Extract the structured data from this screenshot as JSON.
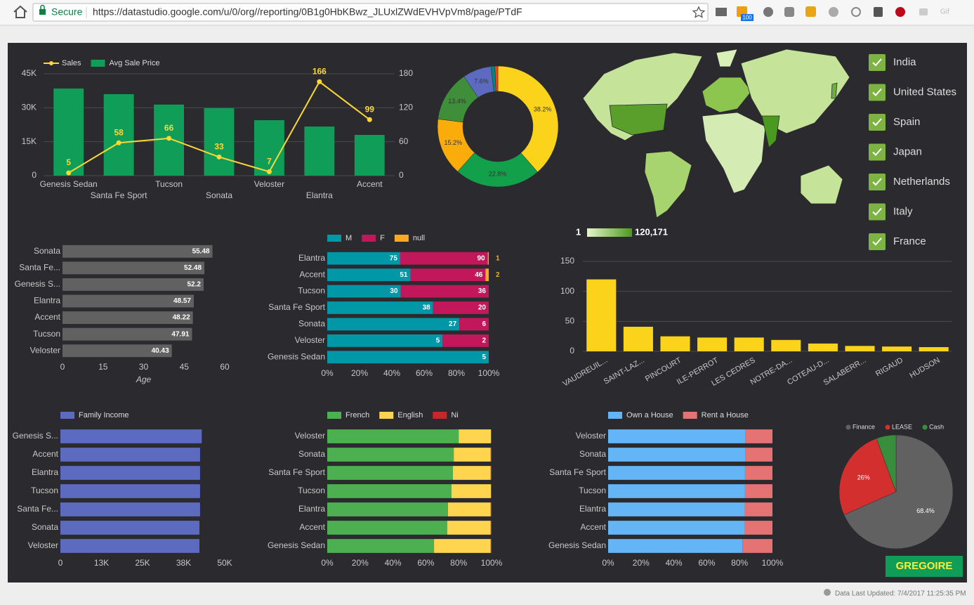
{
  "browser": {
    "secure": "Secure",
    "url": "https://datastudio.google.com/u/0/org//reporting/0B1g0HbKBwz_JLUxlZWdEVHVpVm8/page/PTdF",
    "badge": "100",
    "gif": "Gif"
  },
  "logo": "GREGOIRE",
  "footer": "Data Last Updated: 7/4/2017 11:25:35 PM",
  "chart_data": [
    {
      "type": "combo",
      "categories": [
        "Genesis Sedan",
        "Santa Fe Sport",
        "Tucson",
        "Sonata",
        "Veloster",
        "Elantra",
        "Accent"
      ],
      "series": [
        {
          "name": "Sales",
          "type": "line",
          "axis": "y2",
          "color": "#fdd835",
          "data_labels": true,
          "values": [
            5,
            58,
            66,
            33,
            7,
            166,
            99
          ]
        },
        {
          "name": "Avg Sale Price",
          "type": "bar",
          "color": "#0f9d58",
          "values": [
            38500,
            36000,
            31400,
            29800,
            24500,
            21700,
            18000
          ]
        }
      ],
      "ylim": [
        0,
        45000
      ],
      "yticks": [
        0,
        {
          "value": 15000,
          "label": "15K"
        },
        {
          "value": 30000,
          "label": "30K"
        },
        {
          "value": 45000,
          "label": "45K"
        }
      ],
      "y2lim": [
        0,
        180
      ],
      "y2ticks": [
        0,
        60,
        120,
        180
      ],
      "grid": true
    },
    {
      "type": "pie",
      "donut": true,
      "values": [
        38.2,
        22.8,
        15.2,
        13.4,
        7.6,
        1.0,
        0.8
      ],
      "value_labels": [
        "38.2%",
        "22.8%",
        "15.2%",
        "13.4%",
        "7.6%",
        null,
        null
      ],
      "colors": [
        "#fbd31b",
        "#12a04b",
        "#f9ac0a",
        "#3e8e3a",
        "#5c6bc0",
        "#00897b",
        "#e64a19"
      ]
    },
    {
      "type": "map",
      "legend_min": 1,
      "legend_max": {
        "value": 120171,
        "label": "120,171"
      },
      "color_range": [
        "#e6f5c9",
        "#4a9a1f"
      ],
      "countries": [
        "India",
        "United States",
        "Spain",
        "Japan",
        "Netherlands",
        "Italy",
        "France"
      ]
    },
    {
      "type": "bar",
      "orientation": "horizontal",
      "data_labels": true,
      "categories": [
        "Sonata",
        "Santa Fe...",
        "Genesis S...",
        "Elantra",
        "Accent",
        "Tucson",
        "Veloster"
      ],
      "values": [
        55.48,
        52.48,
        52.2,
        48.57,
        48.22,
        47.91,
        40.43
      ],
      "color": "#616161",
      "xlim": [
        0,
        60
      ],
      "xticks": [
        0,
        15,
        30,
        45,
        60
      ],
      "xlabel": "Age"
    },
    {
      "type": "bar",
      "orientation": "horizontal",
      "stacked": "percent",
      "data_labels": true,
      "categories": [
        "Elantra",
        "Accent",
        "Tucson",
        "Santa Fe Sport",
        "Sonata",
        "Veloster",
        "Genesis Sedan"
      ],
      "series": [
        {
          "name": "M",
          "color": "#0097a7",
          "values": [
            75,
            51,
            30,
            38,
            27,
            5,
            5
          ]
        },
        {
          "name": "F",
          "color": "#c2185b",
          "values": [
            90,
            46,
            36,
            20,
            6,
            2,
            null
          ]
        },
        {
          "name": "null",
          "color": "#f9a825",
          "values": [
            1,
            2,
            null,
            null,
            null,
            null,
            null
          ]
        }
      ],
      "xlim": [
        0,
        100
      ],
      "xticks": [
        {
          "value": 0,
          "label": "0%"
        },
        {
          "value": 20,
          "label": "20%"
        },
        {
          "value": 40,
          "label": "40%"
        },
        {
          "value": 60,
          "label": "60%"
        },
        {
          "value": 80,
          "label": "80%"
        },
        {
          "value": 100,
          "label": "100%"
        }
      ]
    },
    {
      "type": "bar",
      "categories": [
        "VAUDREUIL...",
        "SAINT-LAZ...",
        "PINCOURT",
        "ILE-PERROT",
        "LES CEDRES",
        "NOTRE-DA...",
        "COTEAU-D...",
        "SALABERR...",
        "RIGAUD",
        "HUDSON"
      ],
      "values": [
        120,
        41,
        25,
        23,
        23,
        19,
        13,
        9,
        8,
        7
      ],
      "color": "#fbd31b",
      "ylim": [
        0,
        150
      ],
      "yticks": [
        0,
        50,
        100,
        150
      ],
      "grid": true
    },
    {
      "type": "bar",
      "orientation": "horizontal",
      "categories": [
        "Genesis S...",
        "Accent",
        "Elantra",
        "Tucson",
        "Santa Fe...",
        "Sonata",
        "Veloster"
      ],
      "series": [
        {
          "name": "Family Income",
          "color": "#5c6bc0",
          "values": [
            43000,
            42500,
            42500,
            42500,
            42500,
            42300,
            42300
          ]
        }
      ],
      "xlim": [
        0,
        50000
      ],
      "xticks": [
        0,
        {
          "value": 12500,
          "label": "13K"
        },
        {
          "value": 25000,
          "label": "25K"
        },
        {
          "value": 37500,
          "label": "38K"
        },
        {
          "value": 50000,
          "label": "50K"
        }
      ]
    },
    {
      "type": "bar",
      "orientation": "horizontal",
      "stacked": "percent",
      "categories": [
        "Veloster",
        "Sonata",
        "Santa Fe Sport",
        "Tucson",
        "Elantra",
        "Accent",
        "Genesis Sedan"
      ],
      "series": [
        {
          "name": "French",
          "color": "#4caf50",
          "values": [
            80,
            77,
            76.5,
            75.6,
            73.5,
            73,
            65
          ]
        },
        {
          "name": "English",
          "color": "#ffd54f",
          "values": [
            19.6,
            22.5,
            23,
            24,
            26,
            26.5,
            34.5
          ]
        },
        {
          "name": "Ni",
          "color": "#c62828",
          "values": [
            0.4,
            0.5,
            0.5,
            0.4,
            0.5,
            0.5,
            0.5
          ]
        }
      ],
      "xlim": [
        0,
        100
      ],
      "xticks": [
        {
          "value": 0,
          "label": "0%"
        },
        {
          "value": 20,
          "label": "20%"
        },
        {
          "value": 40,
          "label": "40%"
        },
        {
          "value": 60,
          "label": "60%"
        },
        {
          "value": 80,
          "label": "80%"
        },
        {
          "value": 100,
          "label": "100%"
        }
      ]
    },
    {
      "type": "bar",
      "orientation": "horizontal",
      "stacked": "percent",
      "categories": [
        "Veloster",
        "Sonata",
        "Santa Fe Sport",
        "Tucson",
        "Elantra",
        "Accent",
        "Genesis Sedan"
      ],
      "series": [
        {
          "name": "Own a House",
          "color": "#64b5f6",
          "values": [
            83.5,
            83.5,
            83.3,
            83.3,
            83.1,
            83.1,
            81.7
          ]
        },
        {
          "name": "Rent a House",
          "color": "#e57373",
          "values": [
            16.5,
            16.5,
            16.7,
            16.7,
            16.9,
            16.9,
            18.3
          ]
        }
      ],
      "xlim": [
        0,
        100
      ],
      "xticks": [
        {
          "value": 0,
          "label": "0%"
        },
        {
          "value": 20,
          "label": "20%"
        },
        {
          "value": 40,
          "label": "40%"
        },
        {
          "value": 60,
          "label": "60%"
        },
        {
          "value": 80,
          "label": "80%"
        },
        {
          "value": 100,
          "label": "100%"
        }
      ]
    },
    {
      "type": "pie",
      "categories": [
        "Finance",
        "LEASE",
        "Cash"
      ],
      "values": [
        68.4,
        26,
        5.6
      ],
      "value_labels": [
        "68.4%",
        "26%",
        null
      ],
      "colors": [
        "#616161",
        "#d32f2f",
        "#388e3c"
      ]
    }
  ]
}
